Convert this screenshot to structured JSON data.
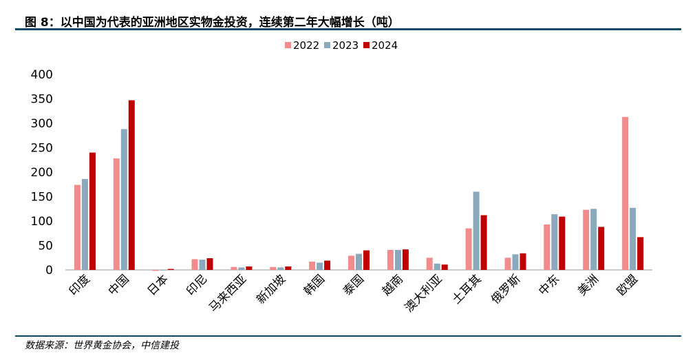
{
  "header": {
    "title": "图 8：以中国为代表的亚洲地区实物金投资，连续第二年大幅增长（吨）"
  },
  "footer": {
    "source": "数据来源：世界黄金协会，中信建投"
  },
  "colors": {
    "rule": "#0b4a6b",
    "axis": "#999999"
  },
  "chart_data": {
    "type": "bar",
    "categories": [
      "印度",
      "中国",
      "日本",
      "印尼",
      "马来西亚",
      "新加坡",
      "韩国",
      "泰国",
      "越南",
      "澳大利亚",
      "土耳其",
      "俄罗斯",
      "中东",
      "美洲",
      "欧盟"
    ],
    "series": [
      {
        "name": "2022",
        "color": "#f28b8b",
        "values": [
          174,
          228,
          -2,
          22,
          6,
          6,
          17,
          29,
          41,
          25,
          85,
          25,
          93,
          123,
          313
        ]
      },
      {
        "name": "2023",
        "color": "#8aa9bd",
        "values": [
          186,
          288,
          -1,
          21,
          5,
          5,
          15,
          33,
          41,
          13,
          160,
          32,
          114,
          125,
          127
        ]
      },
      {
        "name": "2024",
        "color": "#c00000",
        "values": [
          240,
          347,
          2,
          24,
          7,
          7,
          19,
          40,
          42,
          11,
          112,
          34,
          109,
          88,
          67
        ]
      }
    ],
    "yticks": [
      "0",
      "50",
      "100",
      "150",
      "200",
      "250",
      "300",
      "350",
      "400"
    ],
    "ylim": [
      0,
      400
    ],
    "grid": false,
    "legend_position": "top-center"
  }
}
